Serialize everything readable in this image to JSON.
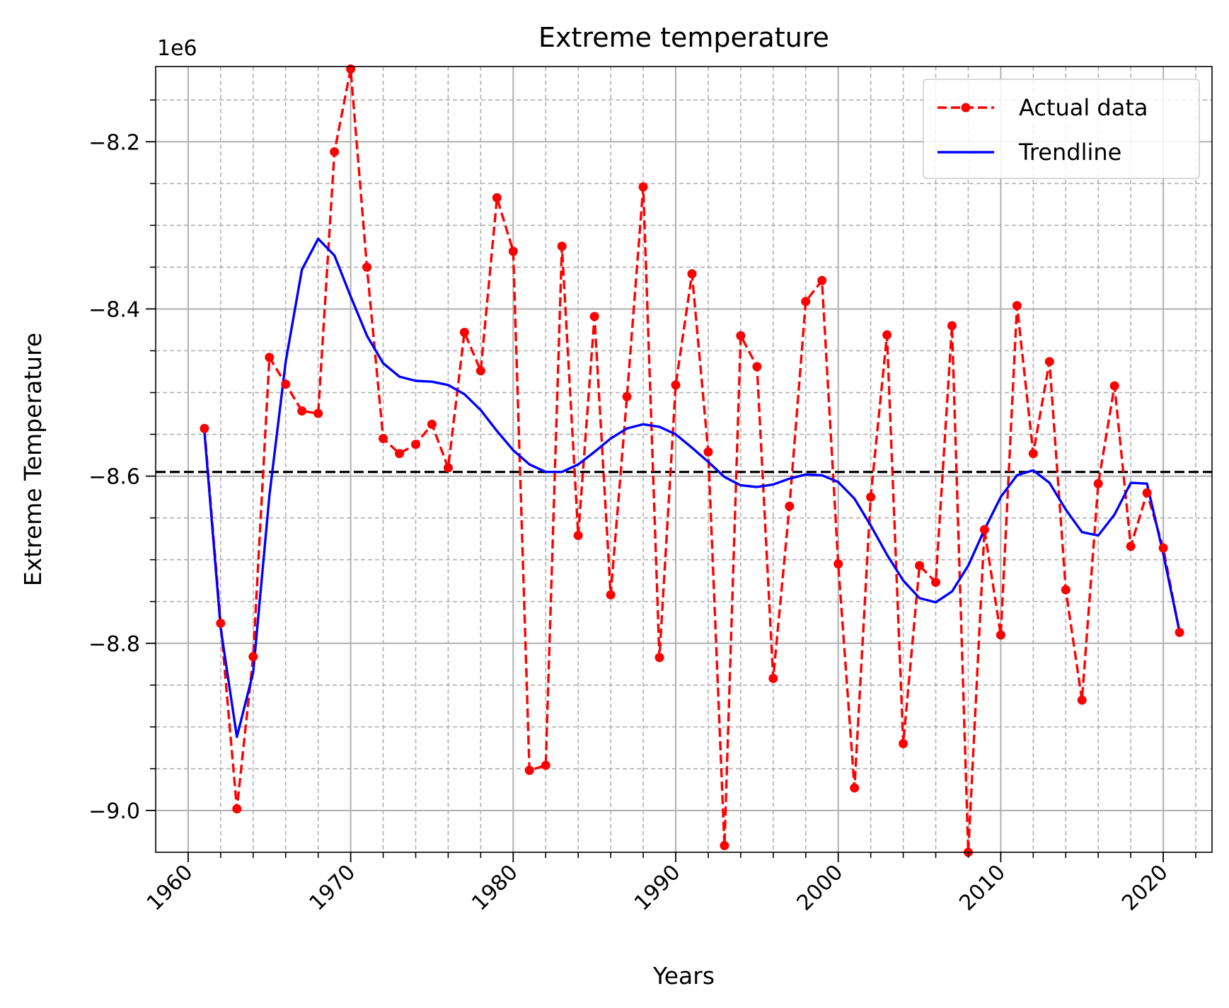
{
  "chart_data": {
    "type": "line",
    "title": "Extreme temperature",
    "xlabel": "Years",
    "ylabel": "Extreme Temperature",
    "y_scale_label": "1e6",
    "xlim": [
      1958.0,
      2023.0
    ],
    "ylim": [
      -9.05,
      -8.11
    ],
    "x_major_ticks": [
      1960,
      1970,
      1980,
      1990,
      2000,
      2010,
      2020
    ],
    "x_minor_ticks": [
      1962,
      1964,
      1966,
      1968,
      1972,
      1974,
      1976,
      1978,
      1982,
      1984,
      1986,
      1988,
      1992,
      1994,
      1996,
      1998,
      2002,
      2004,
      2006,
      2008,
      2012,
      2014,
      2016,
      2018,
      2022
    ],
    "y_major_ticks": [
      -8.2,
      -8.4,
      -8.6,
      -8.8,
      -9.0
    ],
    "y_major_tick_labels": [
      "−8.2",
      "−8.4",
      "−8.6",
      "−8.8",
      "−9.0"
    ],
    "y_minor_ticks": [
      -8.15,
      -8.25,
      -8.3,
      -8.35,
      -8.45,
      -8.5,
      -8.55,
      -8.65,
      -8.7,
      -8.75,
      -8.85,
      -8.9,
      -8.95
    ],
    "x_tick_labels_rotation_deg": 45,
    "grid": true,
    "legend_position": "top-right",
    "reference_line": {
      "y": -8.595,
      "color": "#000000",
      "style": "dashed"
    },
    "x": [
      1961,
      1962,
      1963,
      1964,
      1965,
      1966,
      1967,
      1968,
      1969,
      1970,
      1971,
      1972,
      1973,
      1974,
      1975,
      1976,
      1977,
      1978,
      1979,
      1980,
      1981,
      1982,
      1983,
      1984,
      1985,
      1986,
      1987,
      1988,
      1989,
      1990,
      1991,
      1992,
      1993,
      1994,
      1995,
      1996,
      1997,
      1998,
      1999,
      2000,
      2001,
      2002,
      2003,
      2004,
      2005,
      2006,
      2007,
      2008,
      2009,
      2010,
      2011,
      2012,
      2013,
      2014,
      2015,
      2016,
      2017,
      2018,
      2019,
      2020,
      2021
    ],
    "series": [
      {
        "name": "Actual data",
        "color": "#ff0000",
        "style": "dashed-with-markers",
        "values": [
          -8.543,
          -8.776,
          -8.998,
          -8.816,
          -8.458,
          -8.49,
          -8.522,
          -8.525,
          -8.212,
          -8.113,
          -8.35,
          -8.555,
          -8.573,
          -8.562,
          -8.538,
          -8.59,
          -8.428,
          -8.474,
          -8.267,
          -8.331,
          -8.952,
          -8.946,
          -8.325,
          -8.671,
          -8.409,
          -8.742,
          -8.505,
          -8.254,
          -8.817,
          -8.491,
          -8.358,
          -8.571,
          -9.042,
          -8.432,
          -8.469,
          -8.842,
          -8.636,
          -8.391,
          -8.366,
          -8.705,
          -8.973,
          -8.625,
          -8.431,
          -8.92,
          -8.707,
          -8.727,
          -8.42,
          -9.05,
          -8.664,
          -8.79,
          -8.396,
          -8.573,
          -8.463,
          -8.736,
          -8.868,
          -8.609,
          -8.492,
          -8.684,
          -8.62,
          -8.686,
          -8.787
        ]
      },
      {
        "name": "Trendline",
        "color": "#0000ff",
        "style": "solid",
        "values": [
          -8.547,
          -8.782,
          -8.912,
          -8.835,
          -8.623,
          -8.463,
          -8.353,
          -8.316,
          -8.336,
          -8.385,
          -8.432,
          -8.465,
          -8.481,
          -8.486,
          -8.487,
          -8.491,
          -8.502,
          -8.521,
          -8.546,
          -8.569,
          -8.586,
          -8.595,
          -8.595,
          -8.586,
          -8.571,
          -8.555,
          -8.543,
          -8.538,
          -8.541,
          -8.55,
          -8.566,
          -8.583,
          -8.601,
          -8.611,
          -8.613,
          -8.61,
          -8.603,
          -8.598,
          -8.599,
          -8.607,
          -8.627,
          -8.659,
          -8.694,
          -8.725,
          -8.746,
          -8.751,
          -8.738,
          -8.707,
          -8.664,
          -8.625,
          -8.599,
          -8.593,
          -8.608,
          -8.64,
          -8.667,
          -8.671,
          -8.646,
          -8.608,
          -8.609,
          -8.693,
          -8.786
        ]
      }
    ]
  }
}
